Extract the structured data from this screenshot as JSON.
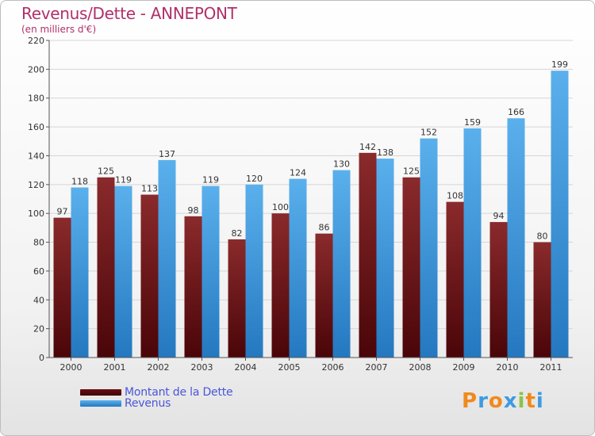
{
  "title": "Revenus/Dette - ANNEPONT",
  "subtitle": "(en milliers d'€)",
  "legend": [
    {
      "label": "Montant de la Dette",
      "color": "#6b0f14"
    },
    {
      "label": "Revenus",
      "color": "#3d9be0"
    }
  ],
  "logo": {
    "letters": [
      "P",
      "r",
      "o",
      "x",
      "i",
      "t",
      "i"
    ],
    "colors": [
      "#f08a1c",
      "#3d9be0",
      "#f08a1c",
      "#3d9be0",
      "#8bc34a",
      "#f08a1c",
      "#3d9be0"
    ]
  },
  "chart_data": {
    "type": "bar",
    "categories": [
      "2000",
      "2001",
      "2002",
      "2003",
      "2004",
      "2005",
      "2006",
      "2007",
      "2008",
      "2009",
      "2010",
      "2011"
    ],
    "series": [
      {
        "name": "Montant de la Dette",
        "values": [
          97,
          125,
          113,
          98,
          82,
          100,
          86,
          142,
          125,
          108,
          94,
          80
        ],
        "color": "#7a1a1e"
      },
      {
        "name": "Revenus",
        "values": [
          118,
          119,
          137,
          119,
          120,
          124,
          130,
          138,
          152,
          159,
          166,
          199
        ],
        "color": "#3d9be0"
      }
    ],
    "ylim": [
      0,
      220
    ],
    "yticks": [
      0,
      20,
      40,
      60,
      80,
      100,
      120,
      140,
      160,
      180,
      200,
      220
    ],
    "grid": true,
    "legend_position": "bottom-left"
  }
}
